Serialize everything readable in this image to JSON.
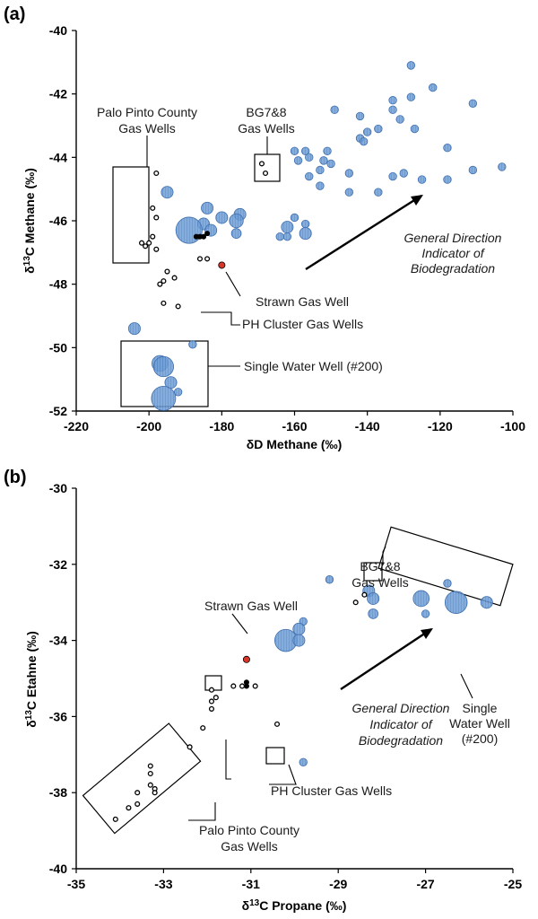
{
  "colors": {
    "blue_fill": "#6f9fd8",
    "blue_edge": "#3f6fae",
    "red_fill": "#d9362b",
    "gas_well_open": "#ffffff",
    "gas_well_black": "#000000"
  },
  "chart_data": [
    {
      "type": "scatter",
      "panel_label": "(a)",
      "xlabel": "δD Methane (‰)",
      "ylabel": "δ13C Methane (‰)",
      "xlim": [
        -220,
        -100
      ],
      "ylim": [
        -52,
        -40
      ],
      "x_ticks": [
        "-220",
        "-200",
        "-180",
        "-160",
        "-140",
        "-120",
        "-100"
      ],
      "y_ticks": [
        "-52",
        "-50",
        "-48",
        "-46",
        "-44",
        "-42",
        "-40"
      ],
      "grid": false,
      "legend": "none",
      "annotations": [
        {
          "id": "palo-pinto",
          "lines": [
            "Palo Pinto County",
            "Gas Wells"
          ],
          "italic": false
        },
        {
          "id": "bg78",
          "lines": [
            "BG7&8",
            "Gas Wells"
          ],
          "italic": false
        },
        {
          "id": "strawn",
          "lines": [
            "Strawn Gas Well"
          ],
          "italic": false
        },
        {
          "id": "ph-cluster",
          "lines": [
            "PH Cluster Gas Wells"
          ],
          "italic": false
        },
        {
          "id": "single-water",
          "lines": [
            "Single Water Well (#200)"
          ],
          "italic": false
        },
        {
          "id": "direction",
          "lines": [
            "General Direction",
            "Indicator of",
            "Biodegradation"
          ],
          "italic": true
        }
      ],
      "water_wells": [
        {
          "x": -128,
          "y": -41.1,
          "s": 1
        },
        {
          "x": -122,
          "y": -41.8,
          "s": 1
        },
        {
          "x": -128,
          "y": -42.1,
          "s": 1
        },
        {
          "x": -111,
          "y": -42.3,
          "s": 1
        },
        {
          "x": -133,
          "y": -42.2,
          "s": 1
        },
        {
          "x": -149,
          "y": -42.5,
          "s": 1
        },
        {
          "x": -133,
          "y": -42.5,
          "s": 1
        },
        {
          "x": -142,
          "y": -42.7,
          "s": 1
        },
        {
          "x": -131,
          "y": -42.8,
          "s": 1
        },
        {
          "x": -137,
          "y": -43.1,
          "s": 1
        },
        {
          "x": -127,
          "y": -43.1,
          "s": 1
        },
        {
          "x": -140,
          "y": -43.2,
          "s": 1
        },
        {
          "x": -142,
          "y": -43.4,
          "s": 1
        },
        {
          "x": -141,
          "y": -43.5,
          "s": 1
        },
        {
          "x": -118,
          "y": -43.7,
          "s": 1
        },
        {
          "x": -160,
          "y": -43.8,
          "s": 1
        },
        {
          "x": -157,
          "y": -43.8,
          "s": 1
        },
        {
          "x": -151,
          "y": -43.8,
          "s": 1
        },
        {
          "x": -156,
          "y": -44.0,
          "s": 1
        },
        {
          "x": -159,
          "y": -44.1,
          "s": 1
        },
        {
          "x": -152,
          "y": -44.1,
          "s": 1
        },
        {
          "x": -150,
          "y": -44.2,
          "s": 1
        },
        {
          "x": -153,
          "y": -44.4,
          "s": 1
        },
        {
          "x": -111,
          "y": -44.4,
          "s": 1
        },
        {
          "x": -103,
          "y": -44.3,
          "s": 1
        },
        {
          "x": -130,
          "y": -44.5,
          "s": 1
        },
        {
          "x": -145,
          "y": -44.5,
          "s": 1
        },
        {
          "x": -156,
          "y": -44.6,
          "s": 1
        },
        {
          "x": -133,
          "y": -44.6,
          "s": 1
        },
        {
          "x": -125,
          "y": -44.7,
          "s": 1
        },
        {
          "x": -118,
          "y": -44.7,
          "s": 1
        },
        {
          "x": -153,
          "y": -44.9,
          "s": 1
        },
        {
          "x": -145,
          "y": -45.1,
          "s": 1
        },
        {
          "x": -137,
          "y": -45.1,
          "s": 1
        },
        {
          "x": -195,
          "y": -45.1,
          "s": 2
        },
        {
          "x": -184,
          "y": -45.6,
          "s": 2
        },
        {
          "x": -175,
          "y": -45.8,
          "s": 2
        },
        {
          "x": -160,
          "y": -45.9,
          "s": 1
        },
        {
          "x": -180,
          "y": -45.9,
          "s": 2
        },
        {
          "x": -176,
          "y": -46.0,
          "s": 2.5
        },
        {
          "x": -185,
          "y": -46.1,
          "s": 2
        },
        {
          "x": -162,
          "y": -46.2,
          "s": 2
        },
        {
          "x": -157,
          "y": -46.1,
          "s": 1
        },
        {
          "x": -189,
          "y": -46.3,
          "s": 5.5
        },
        {
          "x": -183,
          "y": -46.3,
          "s": 2
        },
        {
          "x": -176,
          "y": -46.4,
          "s": 1.5
        },
        {
          "x": -157,
          "y": -46.4,
          "s": 2
        },
        {
          "x": -164,
          "y": -46.5,
          "s": 1
        },
        {
          "x": -162,
          "y": -46.5,
          "s": 1
        },
        {
          "x": -204,
          "y": -49.4,
          "s": 2
        },
        {
          "x": -188,
          "y": -49.9,
          "s": 1
        },
        {
          "x": -197,
          "y": -50.5,
          "s": 3
        },
        {
          "x": -196,
          "y": -50.6,
          "s": 4
        },
        {
          "x": -194,
          "y": -51.1,
          "s": 2
        },
        {
          "x": -192,
          "y": -51.4,
          "s": 1
        },
        {
          "x": -196,
          "y": -51.6,
          "s": 5
        }
      ],
      "palo_pinto_wells": [
        {
          "x": -198,
          "y": -44.5
        },
        {
          "x": -199,
          "y": -45.6
        },
        {
          "x": -198,
          "y": -45.9
        },
        {
          "x": -199,
          "y": -46.5
        },
        {
          "x": -200,
          "y": -46.7
        },
        {
          "x": -201,
          "y": -46.8
        },
        {
          "x": -202,
          "y": -46.7
        },
        {
          "x": -198,
          "y": -46.9
        }
      ],
      "bg78_wells": [
        {
          "x": -169,
          "y": -44.2
        },
        {
          "x": -168,
          "y": -44.5
        }
      ],
      "ph_cluster_wells": [
        {
          "x": -193,
          "y": -47.8
        },
        {
          "x": -195,
          "y": -47.6
        },
        {
          "x": -196,
          "y": -47.9
        },
        {
          "x": -197,
          "y": -48.0
        },
        {
          "x": -196,
          "y": -48.6
        },
        {
          "x": -192,
          "y": -48.7
        },
        {
          "x": -186,
          "y": -47.2
        },
        {
          "x": -184,
          "y": -47.2
        },
        {
          "x": -187,
          "y": -46.5,
          "filled": true
        },
        {
          "x": -186,
          "y": -46.5,
          "filled": true
        },
        {
          "x": -185,
          "y": -46.5,
          "filled": true
        },
        {
          "x": -184,
          "y": -46.4,
          "filled": true
        }
      ],
      "strawn_well": {
        "x": -180,
        "y": -47.4
      }
    },
    {
      "type": "scatter",
      "panel_label": "(b)",
      "xlabel": "δ13C Propane (‰)",
      "ylabel": "δ13C Etahne (‰)",
      "xlim": [
        -35,
        -25
      ],
      "ylim": [
        -40,
        -30
      ],
      "x_ticks": [
        "-35",
        "-33",
        "-31",
        "-29",
        "-27",
        "-25"
      ],
      "y_ticks": [
        "-40",
        "-38",
        "-36",
        "-34",
        "-32",
        "-30"
      ],
      "grid": false,
      "legend": "none",
      "annotations": [
        {
          "id": "bg78",
          "lines": [
            "BG7&8",
            "Gas Wells"
          ],
          "italic": false
        },
        {
          "id": "strawn",
          "lines": [
            "Strawn Gas Well"
          ],
          "italic": false
        },
        {
          "id": "single-water",
          "lines": [
            "Single",
            "Water Well",
            "(#200)"
          ],
          "italic": false
        },
        {
          "id": "direction",
          "lines": [
            "General  Direction",
            "Indicator of",
            "Biodegradation"
          ],
          "italic": true
        },
        {
          "id": "ph-cluster",
          "lines": [
            "PH Cluster Gas Wells"
          ],
          "italic": false
        },
        {
          "id": "palo-pinto",
          "lines": [
            "Palo Pinto County",
            "Gas Wells"
          ],
          "italic": false
        }
      ],
      "water_wells": [
        {
          "x": -29.2,
          "y": -32.4,
          "s": 1
        },
        {
          "x": -26.5,
          "y": -32.5,
          "s": 1
        },
        {
          "x": -28.3,
          "y": -32.7,
          "s": 2
        },
        {
          "x": -28.2,
          "y": -32.9,
          "s": 2
        },
        {
          "x": -27.1,
          "y": -32.9,
          "s": 3
        },
        {
          "x": -26.3,
          "y": -33.0,
          "s": 4.5
        },
        {
          "x": -25.6,
          "y": -33.0,
          "s": 2
        },
        {
          "x": -28.2,
          "y": -33.3,
          "s": 1.5
        },
        {
          "x": -27.0,
          "y": -33.3,
          "s": 1
        },
        {
          "x": -29.8,
          "y": -33.5,
          "s": 1
        },
        {
          "x": -29.9,
          "y": -33.7,
          "s": 2
        },
        {
          "x": -30.2,
          "y": -34.0,
          "s": 4.5
        },
        {
          "x": -29.9,
          "y": -34.0,
          "s": 2
        },
        {
          "x": -29.8,
          "y": -37.2,
          "s": 1
        }
      ],
      "palo_pinto_wells": [
        {
          "x": -33.3,
          "y": -37.3
        },
        {
          "x": -33.3,
          "y": -37.5
        },
        {
          "x": -33.3,
          "y": -37.8
        },
        {
          "x": -33.2,
          "y": -37.9
        },
        {
          "x": -33.2,
          "y": -38.0
        },
        {
          "x": -33.6,
          "y": -38.0
        },
        {
          "x": -33.6,
          "y": -38.3
        },
        {
          "x": -33.8,
          "y": -38.4
        },
        {
          "x": -34.1,
          "y": -38.7
        }
      ],
      "bg78_wells": [
        {
          "x": -28.6,
          "y": -33.0
        },
        {
          "x": -28.4,
          "y": -32.8
        }
      ],
      "ph_cluster_wells": [
        {
          "x": -31.9,
          "y": -35.3
        },
        {
          "x": -31.8,
          "y": -35.5
        },
        {
          "x": -31.9,
          "y": -35.6
        },
        {
          "x": -31.9,
          "y": -35.8
        },
        {
          "x": -31.4,
          "y": -35.2
        },
        {
          "x": -31.2,
          "y": -35.2
        },
        {
          "x": -30.9,
          "y": -35.2
        },
        {
          "x": -31.1,
          "y": -35.2,
          "filled": true
        },
        {
          "x": -31.1,
          "y": -35.1,
          "filled": true
        },
        {
          "x": -30.4,
          "y": -36.2
        },
        {
          "x": -32.1,
          "y": -36.3
        },
        {
          "x": -32.4,
          "y": -36.8
        }
      ],
      "strawn_well": {
        "x": -31.1,
        "y": -34.5
      }
    }
  ]
}
